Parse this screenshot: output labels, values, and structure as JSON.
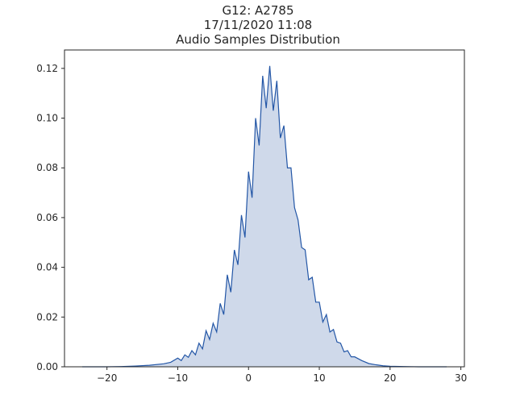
{
  "chart_data": {
    "type": "area",
    "title_lines": [
      "G12: A2785",
      "17/11/2020 11:08",
      "Audio Samples Distribution"
    ],
    "xlabel": "",
    "ylabel": "",
    "xlim": [
      -26,
      30.5
    ],
    "ylim": [
      0,
      0.1274
    ],
    "x_ticks": [
      -20,
      -10,
      0,
      10,
      20,
      30
    ],
    "y_ticks": [
      0.0,
      0.02,
      0.04,
      0.06,
      0.08,
      0.1,
      0.12
    ],
    "y_tick_labels": [
      "0.00",
      "0.02",
      "0.04",
      "0.06",
      "0.08",
      "0.10",
      "0.12"
    ],
    "grid": false,
    "line_color": "#2356a6",
    "fill_color": "#cfd9ea",
    "series": [
      {
        "x": [
          -23.5,
          -22,
          -20,
          -18,
          -16,
          -14,
          -12,
          -11,
          -10,
          -9.5,
          -9,
          -8.5,
          -8,
          -7.5,
          -7,
          -6.5,
          -6,
          -5.5,
          -5,
          -4.5,
          -4,
          -3.5,
          -3,
          -2.5,
          -2,
          -1.5,
          -1,
          -0.5,
          0,
          0.5,
          1,
          1.5,
          2,
          2.5,
          3,
          3.5,
          4,
          4.5,
          5,
          5.5,
          6,
          6.5,
          7,
          7.5,
          8,
          8.5,
          9,
          9.5,
          10,
          10.5,
          11,
          11.5,
          12,
          12.5,
          13,
          13.5,
          14,
          14.5,
          15,
          16,
          17,
          18,
          19,
          20,
          22,
          24,
          26,
          28
        ],
        "y": [
          0,
          0,
          0,
          0.0001,
          0.0003,
          0.0006,
          0.0012,
          0.0018,
          0.0035,
          0.0025,
          0.0048,
          0.0038,
          0.0065,
          0.0048,
          0.0095,
          0.0072,
          0.0145,
          0.011,
          0.0175,
          0.014,
          0.0255,
          0.021,
          0.037,
          0.03,
          0.047,
          0.041,
          0.061,
          0.052,
          0.0785,
          0.068,
          0.1,
          0.089,
          0.117,
          0.104,
          0.121,
          0.103,
          0.115,
          0.092,
          0.097,
          0.08,
          0.08,
          0.064,
          0.059,
          0.048,
          0.047,
          0.035,
          0.036,
          0.026,
          0.026,
          0.018,
          0.021,
          0.014,
          0.015,
          0.01,
          0.0095,
          0.006,
          0.0065,
          0.004,
          0.004,
          0.0025,
          0.0013,
          0.0008,
          0.0004,
          0.0002,
          0.0001,
          0,
          0,
          0
        ]
      }
    ]
  }
}
